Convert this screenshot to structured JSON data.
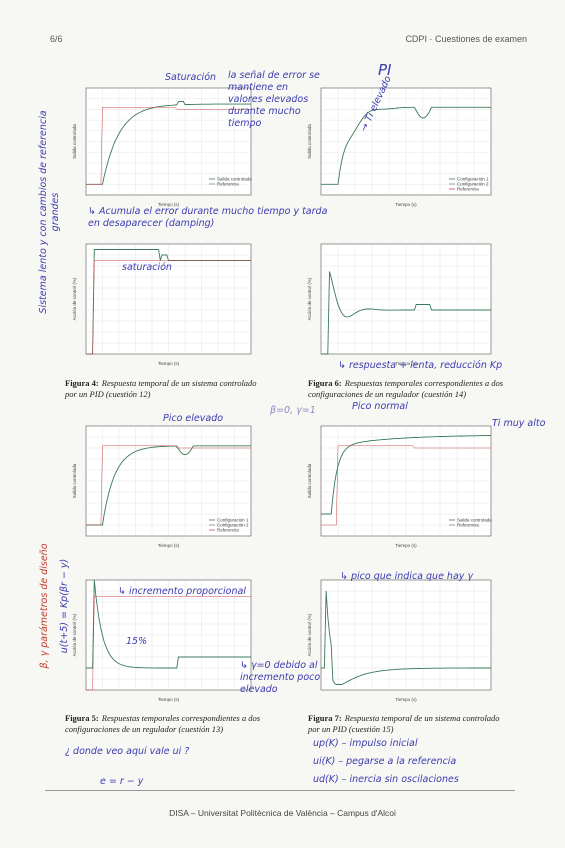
{
  "header": {
    "page": "6/6",
    "course": "CDPI · Cuestiones de examen"
  },
  "plots": [
    {
      "ylabel": "Salida controlada",
      "xlabel": "Tiempo (s)",
      "legend": [
        "Salida controlada",
        "Referencia"
      ]
    },
    {
      "ylabel": "Salida controlada",
      "xlabel": "Tiempo (s)",
      "legend": [
        "Configuración 1",
        "Configuración 2",
        "Referencia"
      ]
    },
    {
      "ylabel": "Acción de control (%)",
      "xlabel": "Tiempo (s)",
      "legend": []
    },
    {
      "ylabel": "Acción de control (%)",
      "xlabel": "Tiempo (s)",
      "legend": []
    },
    {
      "ylabel": "Salida controlada",
      "xlabel": "Tiempo (s)",
      "legend": [
        "Configuración 1",
        "Configuración 2",
        "Referencia"
      ]
    },
    {
      "ylabel": "Salida controlada",
      "xlabel": "Tiempo (s)",
      "legend": [
        "Salida controlada",
        "Referencia"
      ]
    },
    {
      "ylabel": "Acción de control (%)",
      "xlabel": "Tiempo (s)",
      "legend": []
    },
    {
      "ylabel": "Acción de control (%)",
      "xlabel": "Tiempo (s)",
      "legend": []
    }
  ],
  "figures": [
    {
      "label": "Figura 4:",
      "caption": "Respuesta temporal de un sistema controlado por un PID (cuestión 12)"
    },
    {
      "label": "Figura 6:",
      "caption": "Respuestas temporales correspondientes a dos configuraciones de un regulador (cuestión 14)"
    },
    {
      "label": "Figura 5:",
      "caption": "Respuestas temporales correspondientes a dos configuraciones de un regulador (cuestión 13)"
    },
    {
      "label": "Figura 7:",
      "caption": "Respuesta temporal de un sistema controlado por un PID (cuestión 15)"
    }
  ],
  "notes": [
    "Saturación",
    "la señal de error se mantiene en valores elevados durante mucho tiempo",
    "→ Ti elevado",
    "PI",
    "↳ Acumula el error durante mucho tiempo y tarda en desaparecer (damping)",
    "saturación",
    "Sistema lento y con cambios de referencia grandes",
    "↳ respuesta + lenta, reducción Kp",
    "Pico elevado",
    "β=0, γ=1",
    "Pico normal",
    "Ti muy alto",
    "↳ incremento proporcional",
    "15%",
    "↳ γ=0 debido al incremento poco elevado",
    "↳ pico que indica que hay γ",
    "β, γ parámetros de diseño",
    "¿ donde veo aqui vale ui ?",
    "e = r − y",
    "up(K) – impulso inicial",
    "ui(K) – pegarse a la referencia",
    "ud(K) – inercia sin oscilaciones",
    "u(t+5) = Kp(βr − y)"
  ],
  "footer": "DISA – Universitat Politècnica de València – Campus d'Alcoi"
}
